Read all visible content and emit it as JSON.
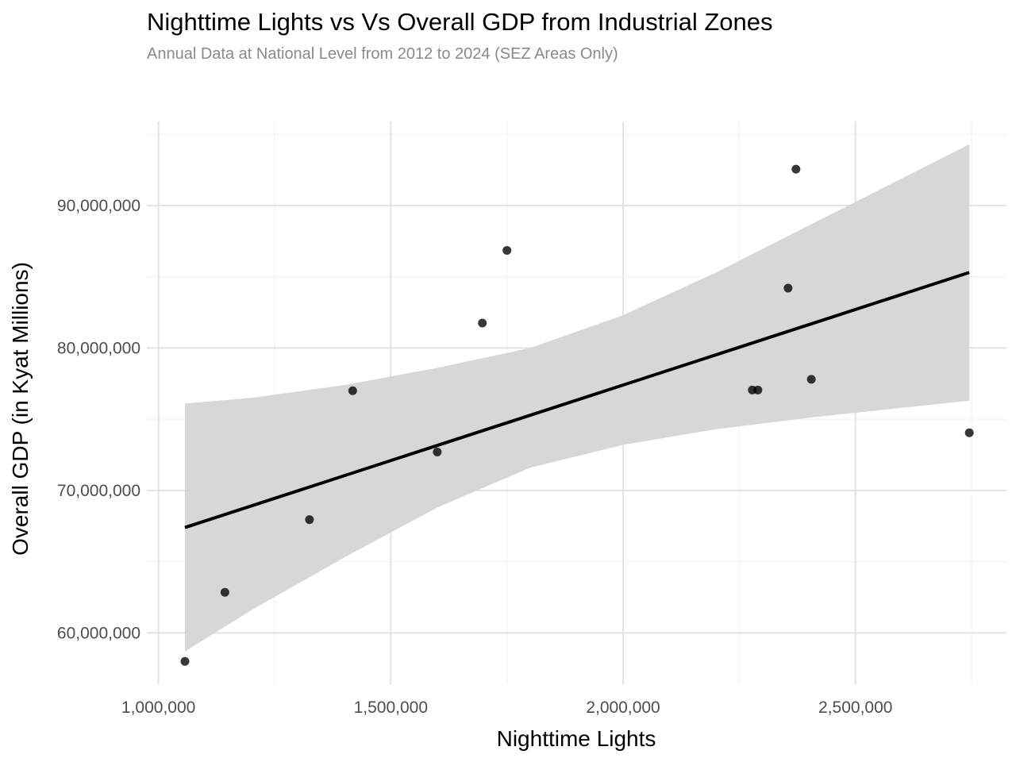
{
  "chart_data": {
    "type": "scatter",
    "title": "Nighttime Lights vs Vs Overall GDP from Industrial Zones",
    "subtitle": "Annual Data at National Level from 2012 to 2024 (SEZ Areas Only)",
    "xlabel": "Nighttime Lights",
    "ylabel": "Overall GDP (in Kyat Millions)",
    "xlim": [
      975000,
      2825000
    ],
    "ylim": [
      56400000,
      95900000
    ],
    "x_ticks": [
      1000000,
      1500000,
      2000000,
      2500000
    ],
    "x_tick_labels": [
      "1,000,000",
      "1,500,000",
      "2,000,000",
      "2,500,000"
    ],
    "y_ticks": [
      60000000,
      70000000,
      80000000,
      90000000
    ],
    "y_tick_labels": [
      "60,000,000",
      "70,000,000",
      "80,000,000",
      "90,000,000"
    ],
    "grid": true,
    "series": [
      {
        "name": "observations",
        "points": [
          {
            "x": 1057000,
            "y": 58000000
          },
          {
            "x": 1143000,
            "y": 62850000
          },
          {
            "x": 1325000,
            "y": 67950000
          },
          {
            "x": 1418000,
            "y": 77000000
          },
          {
            "x": 1600000,
            "y": 72700000
          },
          {
            "x": 1697000,
            "y": 81750000
          },
          {
            "x": 1750000,
            "y": 86850000
          },
          {
            "x": 2278000,
            "y": 77050000
          },
          {
            "x": 2290000,
            "y": 77050000
          },
          {
            "x": 2355000,
            "y": 84200000
          },
          {
            "x": 2372000,
            "y": 92550000
          },
          {
            "x": 2405000,
            "y": 77800000
          },
          {
            "x": 2745000,
            "y": 74050000
          }
        ]
      }
    ],
    "trend_line": {
      "x": [
        1057000,
        2745000
      ],
      "y": [
        67400000,
        85300000
      ]
    },
    "confidence_band": {
      "x": [
        1057000,
        1200000,
        1400000,
        1600000,
        1800000,
        2000000,
        2200000,
        2400000,
        2600000,
        2745000
      ],
      "upper": [
        76100000,
        76500000,
        77400000,
        78600000,
        80000000,
        82300000,
        85300000,
        88600000,
        91900000,
        94300000
      ],
      "lower": [
        58700000,
        61600000,
        65300000,
        68800000,
        71600000,
        73200000,
        74300000,
        75100000,
        75800000,
        76300000
      ]
    },
    "colors": {
      "points": "#000000",
      "line": "#000000",
      "band": "#d5d5d5",
      "grid": "#e3e3e3"
    }
  }
}
